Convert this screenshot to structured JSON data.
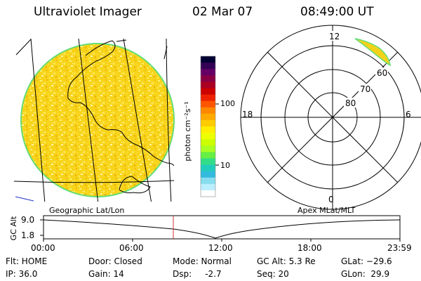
{
  "header": {
    "instrument": "Ultraviolet Imager",
    "date": "02 Mar 07",
    "time": "08:49:00 UT"
  },
  "colorbar": {
    "unit_label": "photon cm⁻²s⁻¹",
    "tick_labels": [
      "100",
      "10"
    ],
    "colors": [
      "#000033",
      "#330055",
      "#660066",
      "#880044",
      "#aa0022",
      "#cc0000",
      "#ee2200",
      "#ff5500",
      "#ff8800",
      "#ffaa00",
      "#ffcc00",
      "#ffee00",
      "#eeff00",
      "#ccff00",
      "#aaff22",
      "#66ee44",
      "#33dd88",
      "#22ccbb",
      "#33bbdd",
      "#88ddee",
      "#bbeeff",
      "#ffffff"
    ]
  },
  "geo_panel": {
    "caption": "Geographic Lat/Lon"
  },
  "polar_panel": {
    "caption": "Apex MLat/MLT",
    "mlt_labels": {
      "top": "12",
      "left": "18",
      "right": "6",
      "bottom": "0"
    },
    "mlat_labels": [
      "60",
      "70",
      "80"
    ]
  },
  "timeline": {
    "axis_label": "GC Alt",
    "y_ticks": [
      "9.0",
      "1.8"
    ],
    "time_ticks": [
      "00:00",
      "06:00",
      "12:00",
      "18:00",
      "23:59"
    ],
    "current_marker_time": "08:49:00"
  },
  "status": {
    "flt": "Flt: HOME",
    "ip": "IP: 36.0",
    "door": "Door: Closed",
    "gain": "Gain: 14",
    "mode": "Mode: Normal",
    "dsp": "Dsp:     -2.7",
    "gcalt": "GC Alt: 5.3 Re",
    "seq": "Seq: 20",
    "glat": "GLat: −29.6",
    "glon": "GLon:  29.9"
  }
}
